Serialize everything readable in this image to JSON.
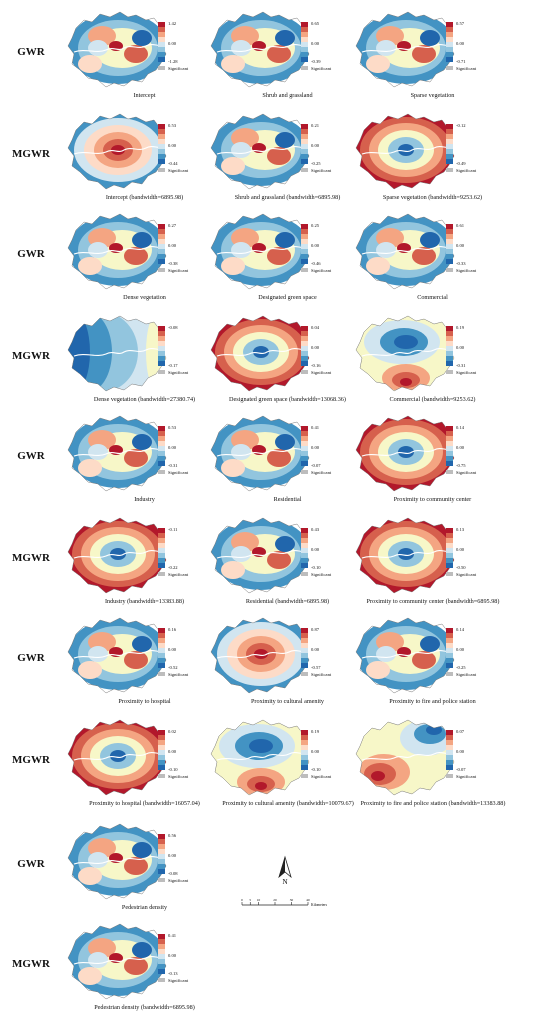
{
  "rows": [
    {
      "model": "GWR",
      "panels": [
        {
          "caption": "Intercept",
          "labels": [
            "1.42",
            "0.00",
            "-1.28",
            "Significant"
          ],
          "palette": "rdbu"
        },
        {
          "caption": "Shrub and grassland",
          "labels": [
            "0.65",
            "0.00",
            "-0.39",
            "Significant"
          ],
          "palette": "rdbu"
        },
        {
          "caption": "Sparse vegetation",
          "labels": [
            "0.57",
            "0.00",
            "-0.71",
            "Significant"
          ],
          "palette": "rdbu"
        }
      ]
    },
    {
      "model": "MGWR",
      "panels": [
        {
          "caption": "Intercept (bandwidth=6895.98)",
          "labels": [
            "0.53",
            "0.00",
            "-0.44",
            "Significant"
          ],
          "palette": "center-warm"
        },
        {
          "caption": "Shrub and grassland (bandwidth=6895.98)",
          "labels": [
            "0.21",
            "0.00",
            "-0.25",
            "Significant"
          ],
          "palette": "rdbu"
        },
        {
          "caption": "Sparse vegetation (bandwidth=9253.62)",
          "labels": [
            "-0.12",
            "-0.49",
            "Significant"
          ],
          "palette": "center-cool"
        }
      ]
    },
    {
      "model": "GWR",
      "panels": [
        {
          "caption": "Dense vegetation",
          "labels": [
            "0.27",
            "0.00",
            "-0.38",
            "Significant"
          ],
          "palette": "rdbu"
        },
        {
          "caption": "Designated green space",
          "labels": [
            "0.25",
            "0.00",
            "-0.46",
            "Significant"
          ],
          "palette": "rdbu"
        },
        {
          "caption": "Commercial",
          "labels": [
            "0.61",
            "0.00",
            "-0.33",
            "Significant"
          ],
          "palette": "rdbu"
        }
      ]
    },
    {
      "model": "MGWR",
      "panels": [
        {
          "caption": "Dense vegetation (bandwidth=27380.74)",
          "labels": [
            "-0.08",
            "-0.17",
            "Significant"
          ],
          "palette": "west-east"
        },
        {
          "caption": "Designated green space (bandwidth=13068.36)",
          "labels": [
            "0.04",
            "0.00",
            "-0.16",
            "Significant"
          ],
          "palette": "center-cool"
        },
        {
          "caption": "Commercial (bandwidth=9253.62)",
          "labels": [
            "0.19",
            "0.00",
            "-0.31",
            "Significant"
          ],
          "palette": "south-warm"
        }
      ]
    },
    {
      "model": "GWR",
      "panels": [
        {
          "caption": "Industry",
          "labels": [
            "0.53",
            "0.00",
            "-0.31",
            "Significant"
          ],
          "palette": "rdbu"
        },
        {
          "caption": "Residential",
          "labels": [
            "0.41",
            "0.00",
            "-0.07",
            "Significant"
          ],
          "palette": "rdbu"
        },
        {
          "caption": "Proximity to community center",
          "labels": [
            "0.14",
            "0.00",
            "-0.75",
            "Significant"
          ],
          "palette": "center-cool"
        }
      ]
    },
    {
      "model": "MGWR",
      "panels": [
        {
          "caption": "Industry (bandwidth=13383.88)",
          "labels": [
            "-0.11",
            "-0.22",
            "Significant"
          ],
          "palette": "center-cool"
        },
        {
          "caption": "Residential (bandwidth=6895.98)",
          "labels": [
            "0.43",
            "0.00",
            "-0.10",
            "Significant"
          ],
          "palette": "rdbu"
        },
        {
          "caption": "Proximity to community center (bandwidth=6895.98)",
          "labels": [
            "0.13",
            "0.00",
            "-0.50",
            "Significant"
          ],
          "palette": "center-cool"
        }
      ]
    },
    {
      "model": "GWR",
      "panels": [
        {
          "caption": "Proximity to hospital",
          "labels": [
            "0.16",
            "0.00",
            "-0.52",
            "Significant"
          ],
          "palette": "rdbu"
        },
        {
          "caption": "Proximity to cultural amenity",
          "labels": [
            "0.87",
            "0.00",
            "-0.57",
            "Significant"
          ],
          "palette": "center-warm"
        },
        {
          "caption": "Proximity to fire and police station",
          "labels": [
            "0.14",
            "0.00",
            "-0.25",
            "Significant"
          ],
          "palette": "rdbu"
        }
      ]
    },
    {
      "model": "MGWR",
      "panels": [
        {
          "caption": "Proximity to hospital (bandwidth=16057.04)",
          "labels": [
            "0.02",
            "0.00",
            "-0.10",
            "Significant"
          ],
          "palette": "center-cool"
        },
        {
          "caption": "Proximity to cultural amenity (bandwidth=10079.67)",
          "labels": [
            "0.19",
            "0.00",
            "-0.10",
            "Significant"
          ],
          "palette": "south-warm"
        },
        {
          "caption": "Proximity to fire and police station (bandwidth=13383.88)",
          "labels": [
            "0.07",
            "0.00",
            "-0.07",
            "Significant"
          ],
          "palette": "diag"
        }
      ]
    },
    {
      "model": "GWR",
      "panels": [
        {
          "caption": "Pedestrian density",
          "labels": [
            "0.56",
            "0.00",
            "-0.08",
            "Significant"
          ],
          "palette": "rdbu"
        }
      ]
    },
    {
      "model": "MGWR",
      "panels": [
        {
          "caption": "Pedestrian density (bandwidth=6895.98)",
          "labels": [
            "0.41",
            "0.00",
            "-0.13",
            "Significant"
          ],
          "palette": "rdbu"
        }
      ]
    }
  ],
  "north_arrow": {
    "label": "N"
  },
  "scale_bar": {
    "ticks": [
      "0",
      "5",
      "10",
      "20",
      "30",
      "40"
    ],
    "unit": "Kilometers"
  },
  "colors": {
    "dark_red": "#b2182b",
    "red": "#d6604d",
    "orange": "#f4a582",
    "yellow": "#fddbc7",
    "cream": "#f7f7c8",
    "light_blue": "#d1e5f0",
    "blue": "#92c5de",
    "mid_blue": "#4393c3",
    "dark_blue": "#2166ac",
    "significant_gray": "#bdbdbd",
    "river": "#ffffff"
  }
}
